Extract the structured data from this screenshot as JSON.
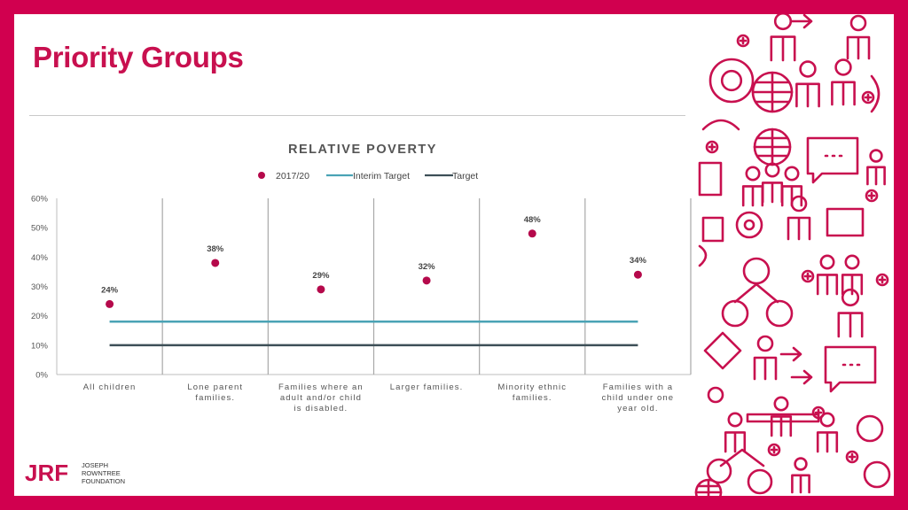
{
  "slide": {
    "title": "Priority Groups"
  },
  "logo": {
    "mark": "JRF",
    "lines": [
      "JOSEPH",
      "ROWNTREE",
      "FOUNDATION"
    ]
  },
  "decoration": {
    "icon_style": "line-art-people-icons",
    "color": "#c8104f"
  },
  "colors": {
    "border": "#d1004f",
    "title": "#c8104f",
    "point": "#b5094b",
    "interim_target": "#4aa3b5",
    "target": "#3d4f57"
  },
  "chart_data": {
    "type": "scatter",
    "title": "RELATIVE POVERTY",
    "legend_position": "top",
    "categories": [
      [
        "All children"
      ],
      [
        "Lone parent",
        "families."
      ],
      [
        "Families where an",
        "adult and/or child",
        "is disabled."
      ],
      [
        "Larger families."
      ],
      [
        "Minority ethnic",
        "families."
      ],
      [
        "Families with a",
        "child under one",
        "year old."
      ]
    ],
    "y_ticks": [
      "0%",
      "10%",
      "20%",
      "30%",
      "40%",
      "50%",
      "60%"
    ],
    "ylim": [
      0,
      60
    ],
    "grid": "vertical category separators",
    "series": [
      {
        "name": "2017/20",
        "kind": "points",
        "values": [
          24,
          38,
          29,
          32,
          48,
          34
        ],
        "labels": [
          "24%",
          "38%",
          "29%",
          "32%",
          "48%",
          "34%"
        ]
      },
      {
        "name": "Interim Target",
        "kind": "line",
        "value": 18
      },
      {
        "name": "Target",
        "kind": "line",
        "value": 10
      }
    ]
  }
}
